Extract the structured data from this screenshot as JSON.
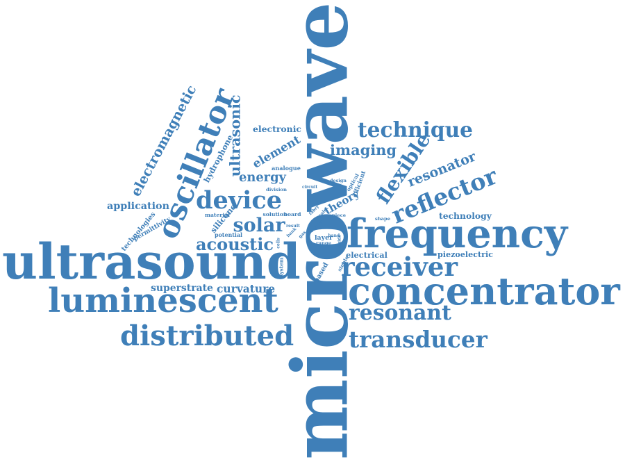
{
  "colors": {
    "text": "#3f7fb8",
    "background": "#ffffff"
  },
  "words": [
    "microwave",
    "ultrasound",
    "frequency",
    "concentrator",
    "luminescent",
    "distributed",
    "oscillator",
    "device",
    "receiver",
    "reflector",
    "flexible",
    "resonant",
    "transducer",
    "technique",
    "solar",
    "acoustic",
    "ultrasonic",
    "superstrate",
    "curvature",
    "imaging",
    "electromagnetic",
    "application",
    "energy",
    "element",
    "resonator",
    "technology",
    "theory",
    "piezoelectric",
    "electrical",
    "electronic",
    "hydrophone",
    "silicone",
    "technologies",
    "permittivity",
    "analogue",
    "layer",
    "range",
    "board",
    "solution",
    "material",
    "potential",
    "division",
    "circuit",
    "design",
    "optical",
    "efficient",
    "single",
    "based",
    "system",
    "fabry",
    "scale",
    "piece",
    "shape",
    "carrier",
    "result",
    "band",
    "bank",
    "gas",
    "cells",
    "guide"
  ]
}
